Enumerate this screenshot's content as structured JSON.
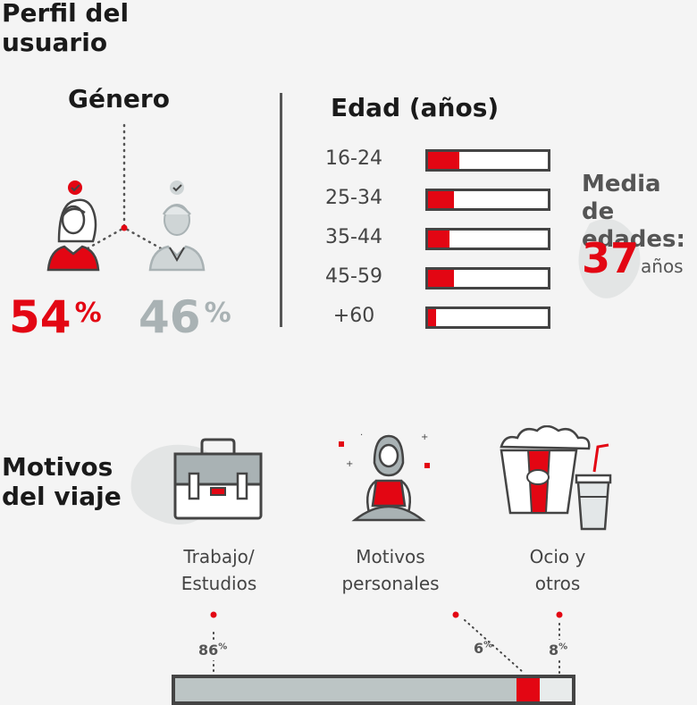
{
  "title": "Perfil del\nusuario",
  "gender": {
    "heading": "Género",
    "female_pct": "54",
    "male_pct": "46",
    "pct_symbol": "%"
  },
  "age": {
    "heading": "Edad (años)",
    "groups": [
      {
        "label": "16-24",
        "share": 0.26
      },
      {
        "label": "25-34",
        "share": 0.22
      },
      {
        "label": "35-44",
        "share": 0.18
      },
      {
        "label": "45-59",
        "share": 0.22
      },
      {
        "label": "+60",
        "share": 0.07
      }
    ],
    "mean_label": "Media de\nedades:",
    "mean_value": "37",
    "mean_unit": "años"
  },
  "motives": {
    "heading": "Motivos\ndel viaje",
    "items": [
      {
        "label": "Trabajo/\nEstudios",
        "icon": "briefcase-icon"
      },
      {
        "label": "Motivos\npersonales",
        "icon": "meditating-person-icon"
      },
      {
        "label": "Ocio y\notros",
        "icon": "popcorn-icon"
      }
    ],
    "shares": {
      "work": "86",
      "personal": "6",
      "leisure": "8",
      "symbol": "%"
    },
    "bar": [
      0.86,
      0.06,
      0.08
    ],
    "colors": {
      "work": "#bcc5c5",
      "personal": "#e30613",
      "leisure": "#e8ebeb"
    }
  },
  "colors": {
    "accent": "#e30613",
    "grey": "#a9b2b4",
    "dark": "#444444"
  }
}
